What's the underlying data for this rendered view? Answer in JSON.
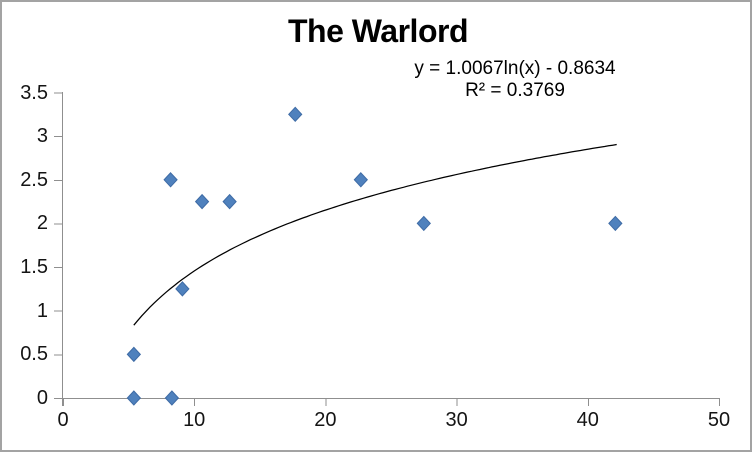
{
  "chart": {
    "title": "The Warlord",
    "trendline_label_line1": "y = 1.0067ln(x) - 0.8634",
    "trendline_label_line2": "R² = 0.3769"
  },
  "chart_data": {
    "type": "scatter",
    "title": "The Warlord",
    "points": [
      [
        5.4,
        0.5
      ],
      [
        5.4,
        0
      ],
      [
        8.3,
        0
      ],
      [
        8.2,
        2.5
      ],
      [
        9.1,
        1.25
      ],
      [
        10.6,
        2.25
      ],
      [
        12.7,
        2.25
      ],
      [
        17.7,
        3.25
      ],
      [
        22.7,
        2.5
      ],
      [
        27.5,
        2.0
      ],
      [
        42.1,
        2.0
      ]
    ],
    "marker": {
      "shape": "diamond",
      "color": "#4F81BD"
    },
    "trendline": {
      "type": "logarithmic",
      "equation": "y = 1.0067ln(x) - 0.8634",
      "a": 1.0067,
      "b": -0.8634,
      "r_squared": 0.3769,
      "x_start": 5.4,
      "x_end": 42.2
    },
    "x_axis": {
      "min": 0,
      "max": 50,
      "ticks": [
        0,
        10,
        20,
        30,
        40,
        50
      ]
    },
    "y_axis": {
      "min": 0,
      "max": 3.5,
      "ticks": [
        0,
        0.5,
        1,
        1.5,
        2,
        2.5,
        3,
        3.5
      ]
    },
    "grid": false,
    "legend": false
  },
  "colors": {
    "marker_fill": "#4F81BD",
    "marker_border": "#3E6BA5",
    "axis": "#8f8f8f",
    "trendline": "#000000",
    "frame_border": "#a3a3a3",
    "background": "#ffffff",
    "text": "#000000"
  }
}
